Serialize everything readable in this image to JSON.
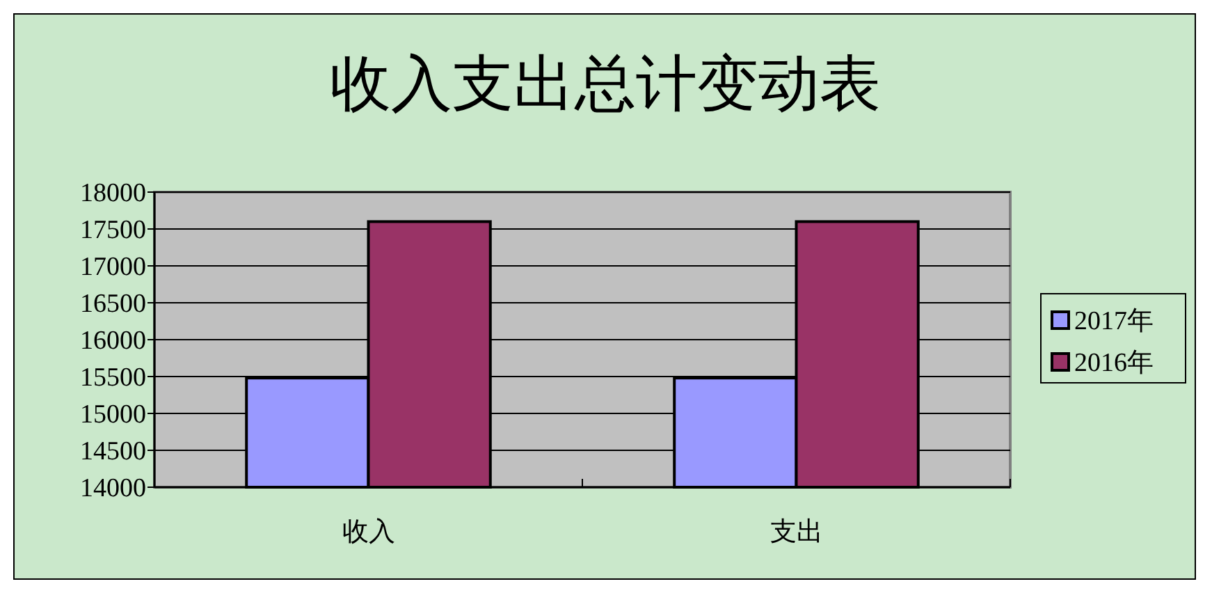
{
  "chart_data": {
    "type": "bar",
    "title": "收入支出总计变动表",
    "categories": [
      "收入",
      "支出"
    ],
    "series": [
      {
        "name": "2017年",
        "color": "#9999ff",
        "values": [
          15480,
          15480
        ]
      },
      {
        "name": "2016年",
        "color": "#993366",
        "values": [
          17600,
          17600
        ]
      }
    ],
    "ylim": [
      14000,
      18000
    ],
    "yticks": [
      14000,
      14500,
      15000,
      15500,
      16000,
      16500,
      17000,
      17500,
      18000
    ],
    "grid": "y",
    "legend": "right"
  }
}
